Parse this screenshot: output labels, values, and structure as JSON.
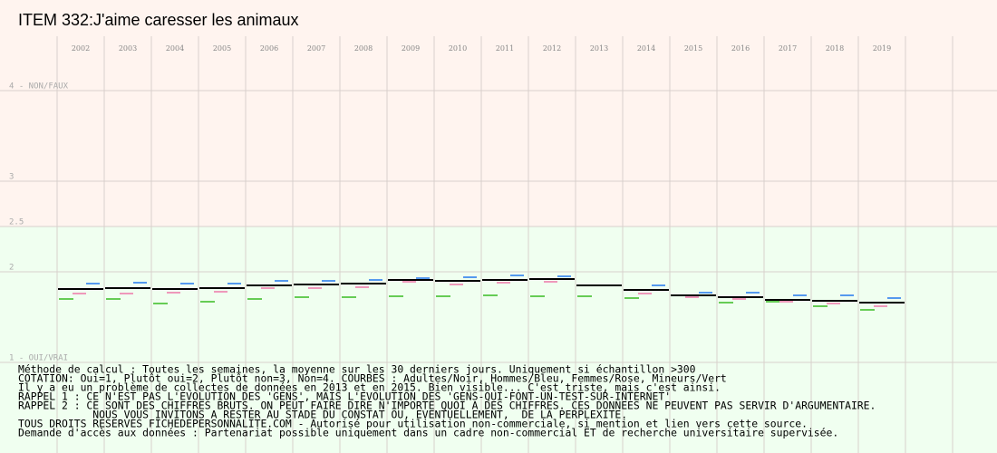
{
  "chart_data": {
    "type": "segments",
    "title": "ITEM 332:J'aime caresser les animaux",
    "categories": [
      "2002",
      "2003",
      "2004",
      "2005",
      "2006",
      "2007",
      "2008",
      "2009",
      "2010",
      "2011",
      "2012",
      "2013",
      "2014",
      "2015",
      "2016",
      "2017",
      "2018",
      "2019"
    ],
    "ylim": [
      0,
      5
    ],
    "yticks": [
      {
        "value": 4,
        "label": "4 - NON/FAUX"
      },
      3,
      2.5,
      2,
      {
        "value": 1,
        "label": "1 - OUI/VRAI"
      }
    ],
    "grid": true,
    "zones": [
      {
        "from": 2.5,
        "to": 5,
        "color": "#fff4ef"
      },
      {
        "from": 0,
        "to": 2.5,
        "color": "#f0fff0"
      }
    ],
    "series": [
      {
        "color": "#000000",
        "values": [
          1.81,
          1.82,
          1.81,
          1.82,
          1.85,
          1.86,
          1.87,
          1.91,
          1.9,
          1.91,
          1.92,
          1.85,
          1.8,
          1.74,
          1.72,
          1.69,
          1.68,
          1.66
        ]
      },
      {
        "color": "#5599ee",
        "values": [
          1.87,
          1.88,
          1.87,
          1.87,
          1.9,
          1.9,
          1.91,
          1.93,
          1.94,
          1.96,
          1.95,
          1.85,
          1.85,
          1.77,
          1.77,
          1.74,
          1.74,
          1.71
        ]
      },
      {
        "color": "#ee99bb",
        "values": [
          1.76,
          1.76,
          1.77,
          1.78,
          1.82,
          1.82,
          1.83,
          1.89,
          1.86,
          1.88,
          1.89,
          1.85,
          1.76,
          1.72,
          1.7,
          1.67,
          1.65,
          1.62
        ]
      },
      {
        "color": "#66cc55",
        "values": [
          1.7,
          1.7,
          1.65,
          1.67,
          1.7,
          1.72,
          1.72,
          1.73,
          1.73,
          1.74,
          1.73,
          1.73,
          1.71,
          1.74,
          1.66,
          1.67,
          1.62,
          1.58
        ]
      }
    ],
    "notes": [
      "Méthode de calcul : Toutes les semaines, la moyenne sur les 30 derniers jours. Uniquement si échantillon >300",
      "COTATION: Oui=1, Plutôt oui=2, Plutôt non=3, Non=4. COURBES : Adultes/Noir, Hommes/Bleu, Femmes/Rose, Mineurs/Vert",
      "Il y a eu un problème de collectes de données en 2013 et en 2015. Bien visible... C'est triste, mais c'est ainsi.",
      "RAPPEL 1 : CE N'EST PAS L'EVOLUTION DES 'GENS', MAIS L'EVOLUTION DES 'GENS-QUI-FONT-UN-TEST-SUR-INTERNET'",
      "RAPPEL 2 : CE SONT DES CHIFFRES BRUTS. ON PEUT FAIRE DIRE N'IMPORTE QUOI A DES CHIFFRES. CES DONNEES NE PEUVENT PAS SERVIR D'ARGUMENTAIRE.",
      "            NOUS VOUS INVITONS A RESTER AU STADE DU CONSTAT OU, EVENTUELLEMENT,  DE LA PERPLEXITE.",
      "TOUS DROITS RESERVES FICHEDEPERSONNALITE.COM - Autorisé pour utilisation non-commerciale, si mention et lien vers cette source.",
      "Demande d'accès aux données : Partenariat possible uniquement dans un cadre non-commercial ET de recherche universitaire supervisée."
    ]
  }
}
